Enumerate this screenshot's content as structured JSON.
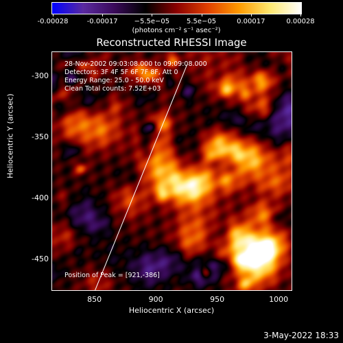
{
  "colorbar": {
    "tick_labels": [
      "-0.00028",
      "-0.00017",
      "−5.5e−05",
      "5.5e−05",
      "0.00017",
      "0.00028"
    ],
    "units": "(photons cm⁻² s⁻¹ asec⁻²)"
  },
  "title": "Reconstructed RHESSI Image",
  "annotations": {
    "time": "28-Nov-2002 09:03:08.000 to 09:09:08.000",
    "detectors": "Detectors: 3F 4F 5F 6F 7F 8F, Att 0",
    "energy": "Energy Range: 25.0 - 50.0 keV",
    "clean": "Clean     Total counts: 7.52E+03",
    "peak": "Position of Peak = [921,-386]"
  },
  "axes": {
    "x_label": "Heliocentric X (arcsec)",
    "y_label": "Heliocentric Y (arcsec)",
    "x_ticks": [
      "850",
      "900",
      "950",
      "1000"
    ],
    "y_ticks": [
      "-300",
      "-350",
      "-400",
      "-450"
    ]
  },
  "timestamp": "3-May-2022 18:33",
  "chart_data": {
    "type": "heatmap",
    "title": "Reconstructed RHESSI Image",
    "xlabel": "Heliocentric X (arcsec)",
    "ylabel": "Heliocentric Y (arcsec)",
    "xlim": [
      815,
      1010
    ],
    "ylim": [
      -475,
      -280
    ],
    "color_range": [
      -0.00028,
      0.00028
    ],
    "peak": [
      921,
      -386
    ],
    "limb_line": [
      [
        850,
        -475
      ],
      [
        925,
        -290
      ]
    ]
  },
  "colors": {
    "colormap": [
      "#0000ff",
      "#5a2aa0",
      "#3a0a5a",
      "#000000",
      "#8a0000",
      "#e04000",
      "#ff9a00",
      "#ffe870",
      "#ffffff"
    ]
  }
}
